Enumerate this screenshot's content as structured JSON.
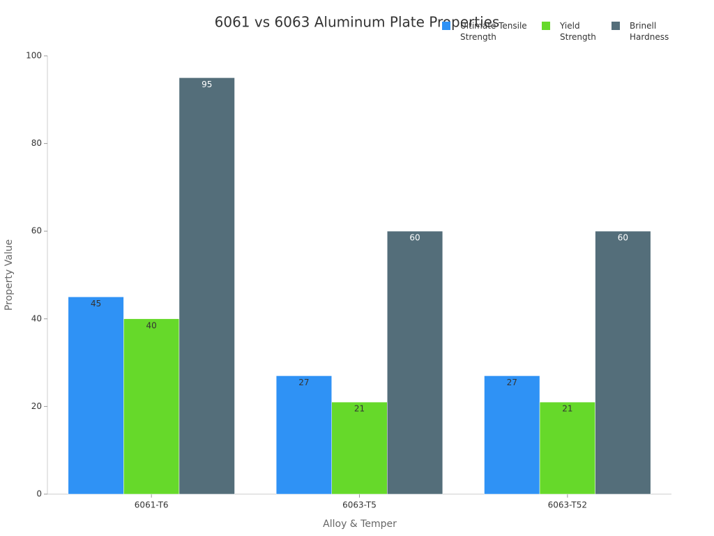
{
  "chart_data": {
    "type": "bar",
    "title": "6061 vs 6063 Aluminum Plate Properties",
    "x_label": "Alloy & Temper",
    "y_label": "Property Value",
    "categories": [
      "6061-T6",
      "6063-T5",
      "6063-T52"
    ],
    "series": [
      {
        "name": "Ultimate Tensile Strength",
        "color": "#2f92f5",
        "label_color": "#333333",
        "values": [
          45,
          27,
          27
        ]
      },
      {
        "name": "Yield Strength",
        "color": "#66d92a",
        "label_color": "#333333",
        "values": [
          40,
          21,
          21
        ]
      },
      {
        "name": "Brinell Hardness",
        "color": "#546e7a",
        "label_color": "#ffffff",
        "values": [
          95,
          60,
          60
        ]
      }
    ],
    "ylim": [
      0,
      100
    ],
    "yticks": [
      0,
      20,
      40,
      60,
      80,
      100
    ],
    "grid": false,
    "legend": "top-right"
  }
}
